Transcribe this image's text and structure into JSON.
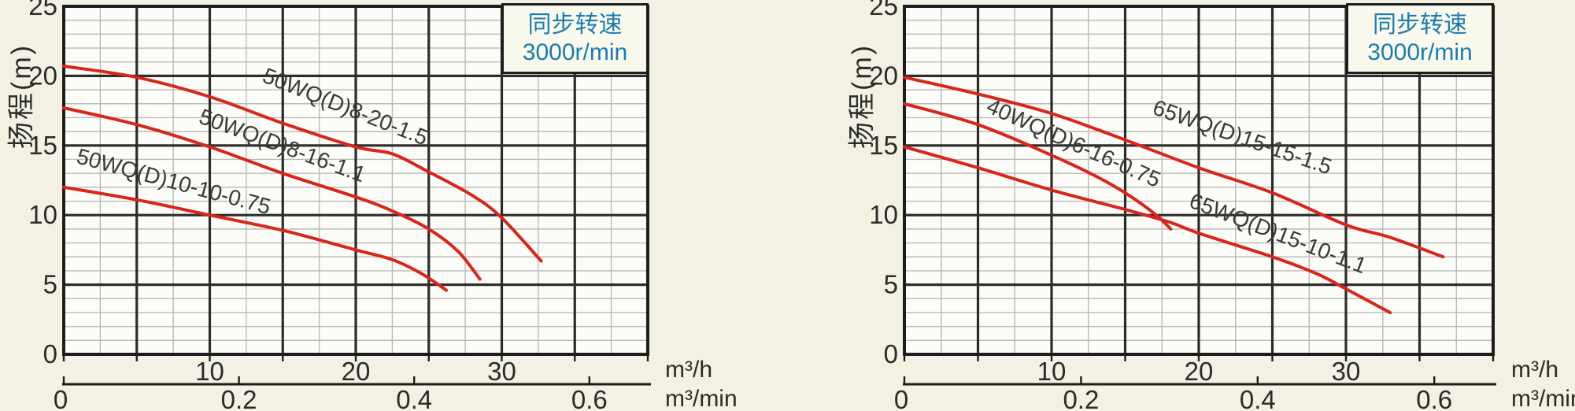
{
  "figure": {
    "y_axis_title": "扬程(m)",
    "legend": {
      "line1": "同步转速",
      "line2": "3000r/min"
    },
    "units": {
      "hour": "m³/h",
      "minute": "m³/min"
    }
  },
  "colors": {
    "background": "#f2f1e4",
    "plot_bg": "#fcfcf8",
    "grid_minor": "#b9b9b6",
    "grid_major": "#2c2c2a",
    "axis": "#1d1d1b",
    "curve": "#d8261b",
    "text": "#2b2b29",
    "curve_label": "#3a3a38",
    "legend_text": "#1b7cb0",
    "legend_bg": "#faf9ee"
  },
  "chart_data": [
    {
      "type": "line",
      "title": "同步转速 3000r/min",
      "ylabel": "扬程(m)",
      "xlabel_primary": "m³/h",
      "xlabel_secondary": "m³/min",
      "xlim": [
        0,
        40
      ],
      "ylim": [
        0,
        25
      ],
      "x_major_step": 5,
      "x_minor_step": 2.5,
      "y_major_step": 5,
      "y_minor_step": 1,
      "x_ticks_m3h": [
        "10",
        "20",
        "30"
      ],
      "x_ticks_m3min": [
        "0",
        "0.2",
        "0.4",
        "0.6"
      ],
      "y_ticks": [
        "0",
        "5",
        "10",
        "15",
        "20",
        "25"
      ],
      "grid": true,
      "legend_position": "top-right",
      "series": [
        {
          "name": "50WQ(D)8-20-1.5",
          "points": [
            [
              0,
              20.7
            ],
            [
              5,
              19.9
            ],
            [
              10,
              18.5
            ],
            [
              15,
              16.6
            ],
            [
              20,
              14.9
            ],
            [
              22.5,
              14.4
            ],
            [
              25,
              13.1
            ],
            [
              28,
              11.4
            ],
            [
              30,
              9.8
            ],
            [
              32.7,
              6.7
            ]
          ],
          "label_anchor": [
            19.1,
            17.3
          ],
          "label_angle": 21.5
        },
        {
          "name": "50WQ(D)8-16-1.1",
          "points": [
            [
              0,
              17.7
            ],
            [
              5,
              16.5
            ],
            [
              10,
              14.9
            ],
            [
              15,
              13.0
            ],
            [
              20,
              11.3
            ],
            [
              22.5,
              10.3
            ],
            [
              25,
              9.0
            ],
            [
              27,
              7.4
            ],
            [
              28.5,
              5.4
            ]
          ],
          "label_anchor": [
            14.8,
            14.5
          ],
          "label_angle": 20
        },
        {
          "name": "50WQ(D)10-10-0.75",
          "points": [
            [
              0,
              12.0
            ],
            [
              5,
              11.1
            ],
            [
              10,
              10.0
            ],
            [
              15,
              8.9
            ],
            [
              20,
              7.5
            ],
            [
              22.5,
              6.8
            ],
            [
              24.5,
              5.8
            ],
            [
              26.2,
              4.6
            ]
          ],
          "label_anchor": [
            7.4,
            11.9
          ],
          "label_angle": 15
        }
      ]
    },
    {
      "type": "line",
      "title": "同步转速 3000r/min",
      "ylabel": "扬程(m)",
      "xlabel_primary": "m³/h",
      "xlabel_secondary": "m³/min",
      "xlim": [
        0,
        40
      ],
      "ylim": [
        0,
        25
      ],
      "x_major_step": 5,
      "x_minor_step": 2.5,
      "y_major_step": 5,
      "y_minor_step": 1,
      "x_ticks_m3h": [
        "10",
        "20",
        "30"
      ],
      "x_ticks_m3min": [
        "0",
        "0.2",
        "0.4",
        "0.6"
      ],
      "y_ticks": [
        "0",
        "5",
        "10",
        "15",
        "20",
        "25"
      ],
      "grid": true,
      "legend_position": "top-right",
      "series": [
        {
          "name": "65WQ(D)15-15-1.5",
          "points": [
            [
              0,
              19.9
            ],
            [
              5,
              18.7
            ],
            [
              10,
              17.3
            ],
            [
              15,
              15.4
            ],
            [
              20,
              13.4
            ],
            [
              25,
              11.6
            ],
            [
              30,
              9.3
            ],
            [
              33,
              8.4
            ],
            [
              36.6,
              7.0
            ]
          ],
          "label_anchor": [
            22.8,
            15.1
          ],
          "label_angle": 19
        },
        {
          "name": "40WQ(D)6-16-0.75",
          "points": [
            [
              0,
              18.0
            ],
            [
              5,
              16.5
            ],
            [
              10,
              14.3
            ],
            [
              13,
              12.8
            ],
            [
              15,
              11.6
            ],
            [
              17,
              10.1
            ],
            [
              18.1,
              9.0
            ]
          ],
          "label_anchor": [
            11.3,
            14.7
          ],
          "label_angle": 24
        },
        {
          "name": "65WQ(D)15-10-1.1",
          "points": [
            [
              0,
              14.9
            ],
            [
              5,
              13.4
            ],
            [
              10,
              11.8
            ],
            [
              15,
              10.4
            ],
            [
              18,
              9.5
            ],
            [
              20,
              8.7
            ],
            [
              25,
              7.0
            ],
            [
              28,
              5.8
            ],
            [
              30,
              4.7
            ],
            [
              33,
              3.0
            ]
          ],
          "label_anchor": [
            25.2,
            8.2
          ],
          "label_angle": 21
        }
      ]
    }
  ]
}
